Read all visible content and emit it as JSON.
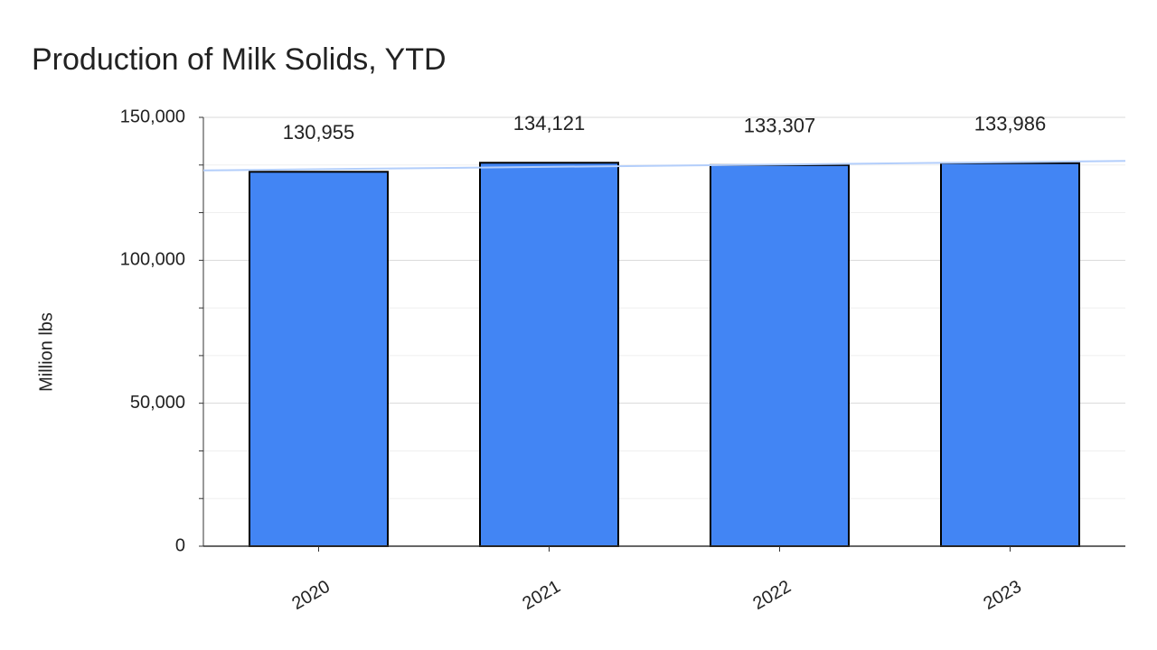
{
  "chart_data": {
    "type": "bar",
    "title": "Production of Milk Solids, YTD",
    "y_label": "Million lbs",
    "categories": [
      "2020",
      "2021",
      "2022",
      "2023"
    ],
    "values": [
      130955,
      134121,
      133307,
      133986
    ],
    "value_labels": [
      "130,955",
      "134,121",
      "133,307",
      "133,986"
    ],
    "color": "#4285f4",
    "value_label_color": "#1a1aff",
    "ylim": [
      0,
      150000
    ],
    "yticks": [
      0,
      {
        "value": 50000,
        "label": "50,000"
      },
      {
        "value": 100000,
        "label": "100,000"
      },
      {
        "value": 150000,
        "label": "150,000"
      }
    ],
    "grid": true,
    "minor_divisions": 3,
    "trendline": true,
    "trendline_color": "#b3cefb"
  }
}
